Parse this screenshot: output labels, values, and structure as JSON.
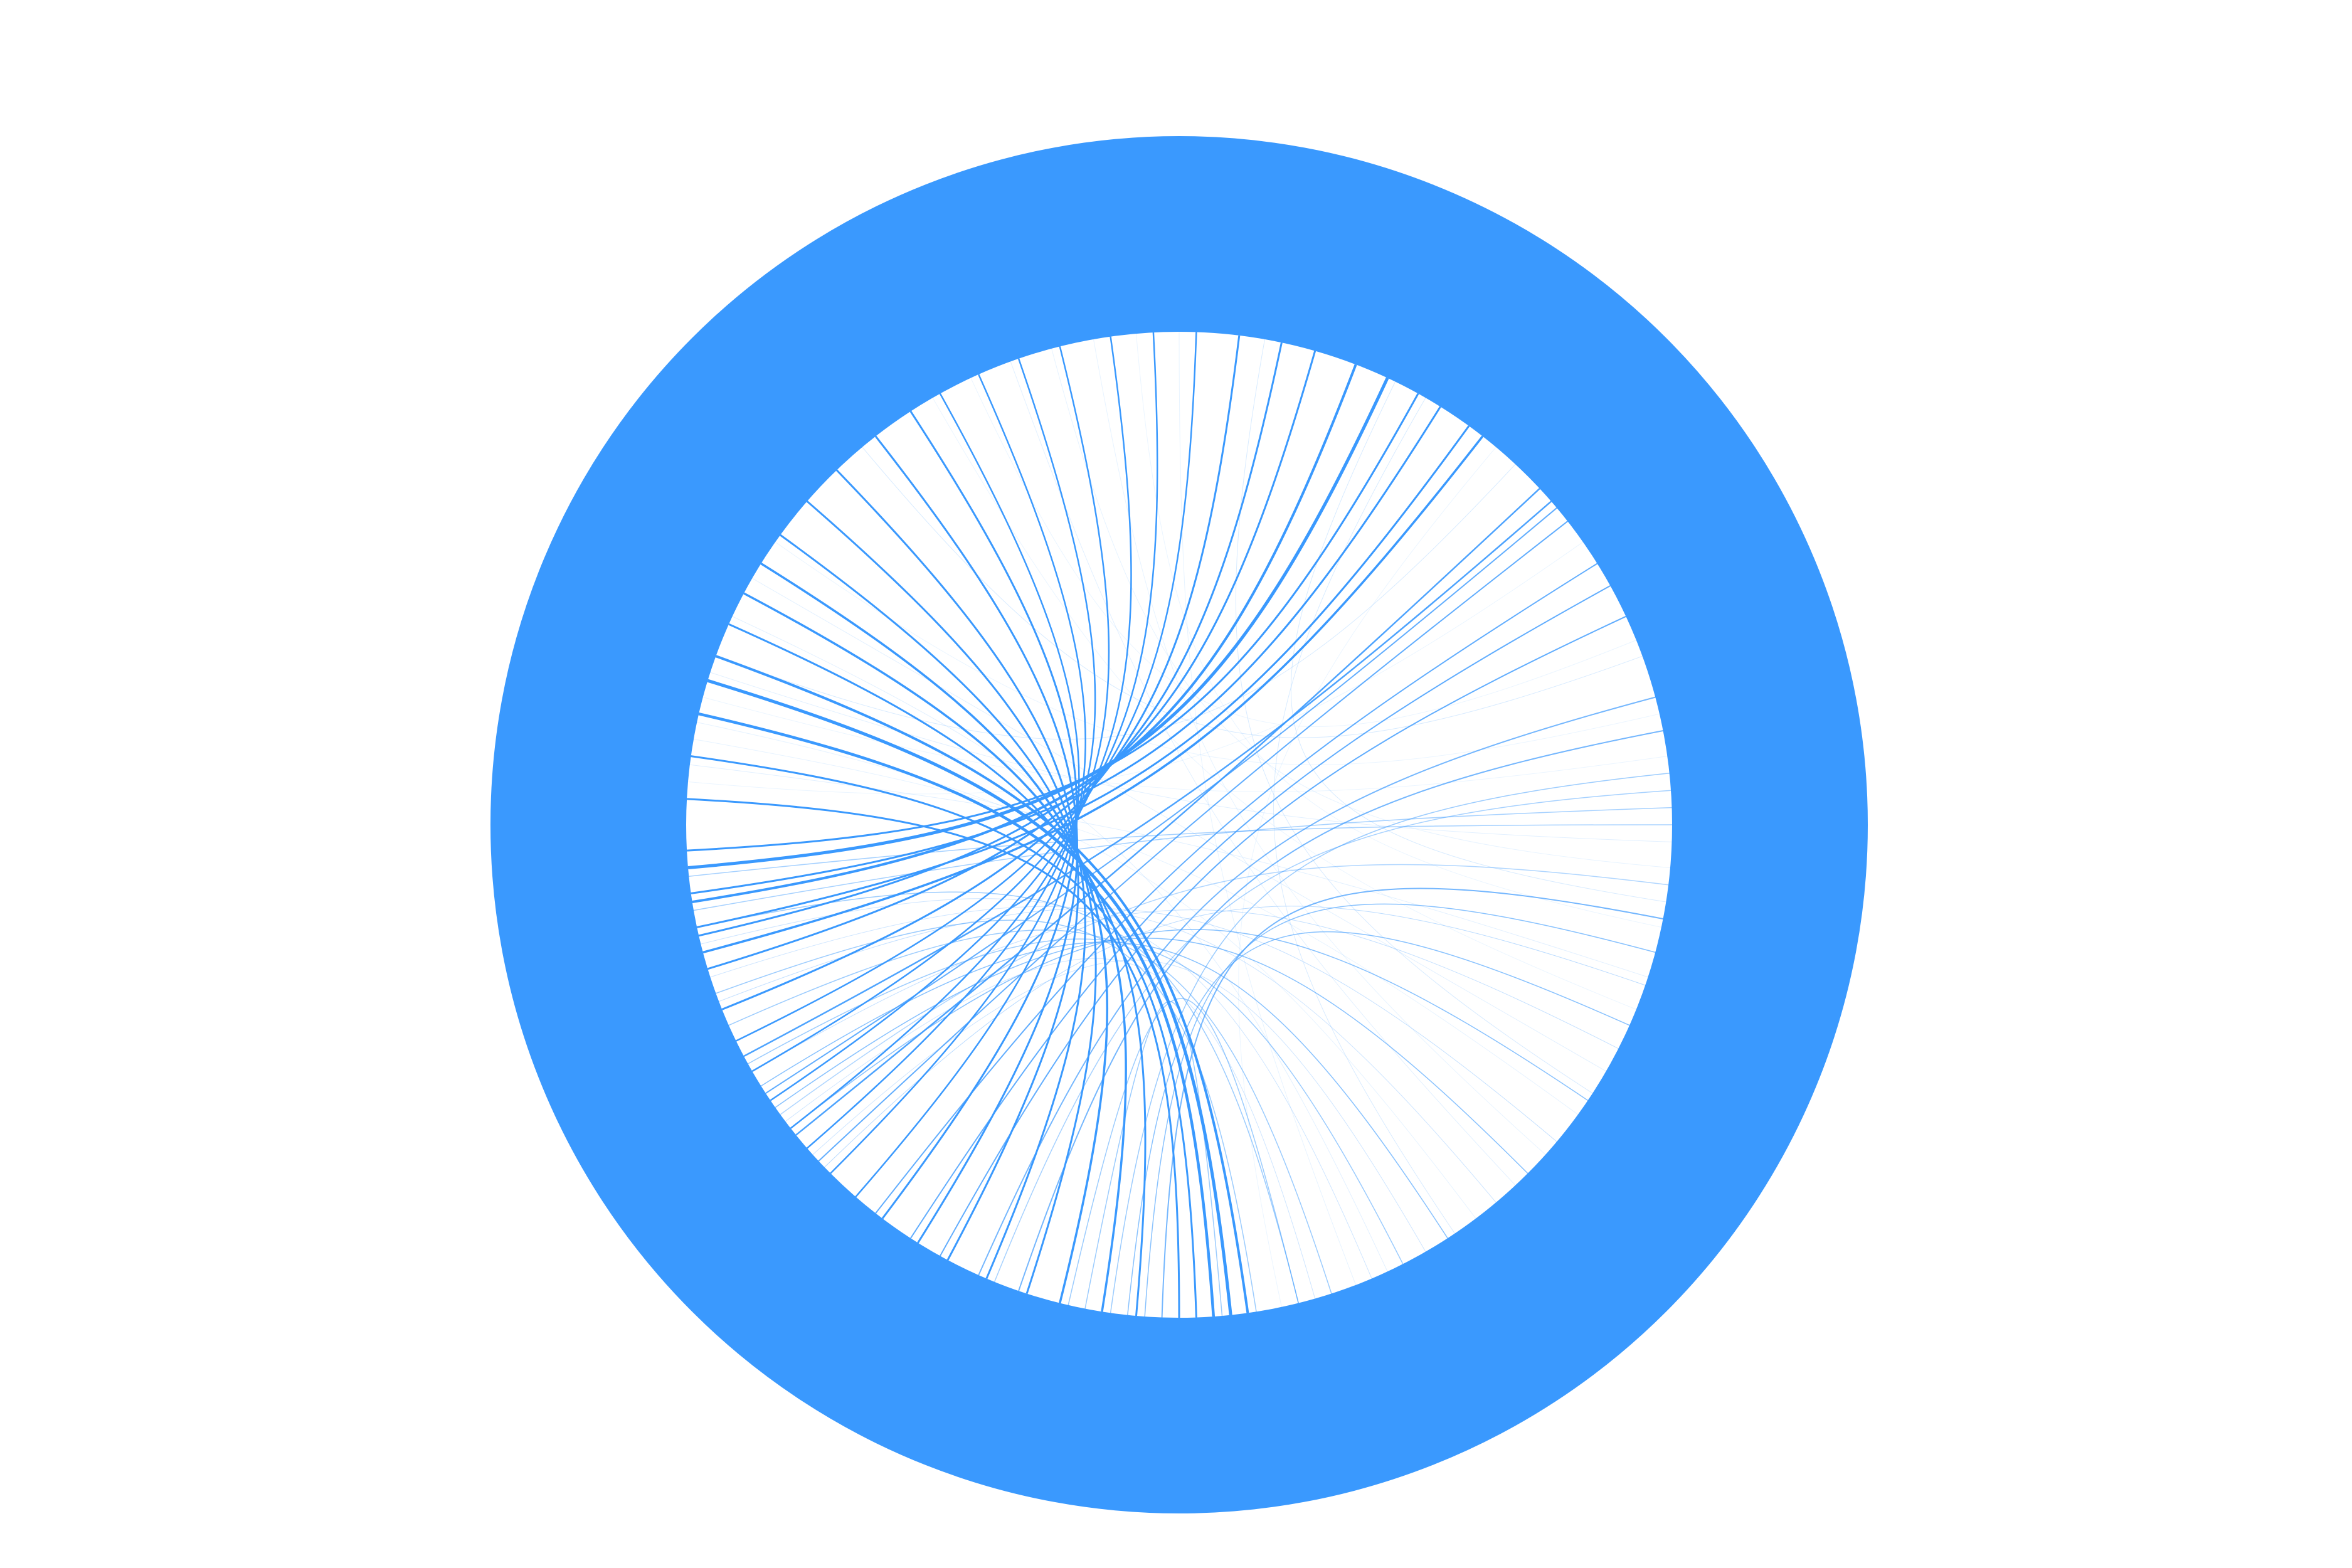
{
  "chart_data": {
    "type": "chord",
    "title": "",
    "ring_color": "#3a99fe",
    "link_color": "#3a99fe",
    "background": "#ffffff",
    "labels": [],
    "note": "",
    "links": [
      {
        "a": 183,
        "b": 90,
        "w": 3.0,
        "o": 1.0
      },
      {
        "a": 188,
        "b": 88,
        "w": 3.0,
        "o": 1.0
      },
      {
        "a": 193,
        "b": 86,
        "w": 4.5,
        "o": 1.0
      },
      {
        "a": 197,
        "b": 84,
        "w": 5.0,
        "o": 1.0
      },
      {
        "a": 200,
        "b": 82,
        "w": 4.0,
        "o": 1.0
      },
      {
        "a": 204,
        "b": 95,
        "w": 3.0,
        "o": 1.0
      },
      {
        "a": 208,
        "b": 99,
        "w": 3.5,
        "o": 1.0
      },
      {
        "a": 212,
        "b": 104,
        "w": 3.5,
        "o": 1.0
      },
      {
        "a": 216,
        "b": 108,
        "w": 3.0,
        "o": 1.0
      },
      {
        "a": 221,
        "b": 113,
        "w": 3.0,
        "o": 1.0
      },
      {
        "a": 226,
        "b": 118,
        "w": 3.0,
        "o": 1.0
      },
      {
        "a": 232,
        "b": 122,
        "w": 3.0,
        "o": 1.0
      },
      {
        "a": 237,
        "b": 127,
        "w": 3.0,
        "o": 1.0
      },
      {
        "a": 241,
        "b": 131,
        "w": 2.5,
        "o": 1.0
      },
      {
        "a": 246,
        "b": 135,
        "w": 2.5,
        "o": 1.0
      },
      {
        "a": 251,
        "b": 139,
        "w": 2.5,
        "o": 1.0
      },
      {
        "a": 256,
        "b": 142,
        "w": 2.5,
        "o": 1.0
      },
      {
        "a": 262,
        "b": 146,
        "w": 2.5,
        "o": 1.0
      },
      {
        "a": 267,
        "b": 150,
        "w": 2.5,
        "o": 1.0
      },
      {
        "a": 272,
        "b": 154,
        "w": 2.5,
        "o": 1.0
      },
      {
        "a": 277,
        "b": 158,
        "w": 3.0,
        "o": 1.0
      },
      {
        "a": 282,
        "b": 163,
        "w": 3.0,
        "o": 1.0
      },
      {
        "a": 286,
        "b": 167,
        "w": 3.0,
        "o": 1.0
      },
      {
        "a": 291,
        "b": 171,
        "w": 4.0,
        "o": 1.0
      },
      {
        "a": 295,
        "b": 175,
        "w": 5.0,
        "o": 1.0
      },
      {
        "a": 299,
        "b": 177,
        "w": 3.0,
        "o": 1.0
      },
      {
        "a": 302,
        "b": 172,
        "w": 3.0,
        "o": 1.0
      },
      {
        "a": 306,
        "b": 168,
        "w": 3.0,
        "o": 1.0
      },
      {
        "a": 308,
        "b": 165,
        "w": 3.5,
        "o": 1.0
      },
      {
        "a": 317,
        "b": 141,
        "w": 2.5,
        "o": 0.9
      },
      {
        "a": 319,
        "b": 152,
        "w": 2.5,
        "o": 0.9
      },
      {
        "a": 320,
        "b": 147,
        "w": 2.0,
        "o": 0.8
      },
      {
        "a": 322,
        "b": 137,
        "w": 2.0,
        "o": 0.8
      },
      {
        "a": 328,
        "b": 128,
        "w": 2.0,
        "o": 0.8
      },
      {
        "a": 331,
        "b": 123,
        "w": 2.0,
        "o": 0.8
      },
      {
        "a": 335,
        "b": 119,
        "w": 2.0,
        "o": 0.8
      },
      {
        "a": 345,
        "b": 114,
        "w": 2.0,
        "o": 0.7
      },
      {
        "a": 349,
        "b": 109,
        "w": 2.0,
        "o": 0.7
      },
      {
        "a": 11,
        "b": 92,
        "w": 2.0,
        "o": 0.7
      },
      {
        "a": 15,
        "b": 94,
        "w": 1.5,
        "o": 0.6
      },
      {
        "a": 24,
        "b": 96,
        "w": 1.5,
        "o": 0.6
      },
      {
        "a": 34,
        "b": 142,
        "w": 1.5,
        "o": 0.6
      },
      {
        "a": 45,
        "b": 145,
        "w": 1.5,
        "o": 0.6
      },
      {
        "a": 57,
        "b": 148,
        "w": 1.5,
        "o": 0.6
      },
      {
        "a": 63,
        "b": 151,
        "w": 1.5,
        "o": 0.5
      },
      {
        "a": 72,
        "b": 156,
        "w": 1.5,
        "o": 0.5
      },
      {
        "a": 76,
        "b": 103,
        "w": 1.5,
        "o": 0.5
      },
      {
        "a": 76,
        "b": 168,
        "w": 1.5,
        "o": 0.5
      },
      {
        "a": 81,
        "b": 160,
        "w": 1.5,
        "o": 0.5
      },
      {
        "a": 85,
        "b": 101,
        "w": 1.5,
        "o": 0.5
      },
      {
        "a": 354,
        "b": 98,
        "w": 1.5,
        "o": 0.5
      },
      {
        "a": 356,
        "b": 112,
        "w": 1.5,
        "o": 0.45
      },
      {
        "a": 358,
        "b": 170,
        "w": 1.5,
        "o": 0.45
      },
      {
        "a": 0,
        "b": 174,
        "w": 1.5,
        "o": 0.45
      },
      {
        "a": 7,
        "b": 144,
        "w": 1.5,
        "o": 0.4
      },
      {
        "a": 19,
        "b": 136,
        "w": 1.0,
        "o": 0.35
      },
      {
        "a": 27,
        "b": 150,
        "w": 1.0,
        "o": 0.3
      },
      {
        "a": 40,
        "b": 159,
        "w": 1.0,
        "o": 0.3
      },
      {
        "a": 50,
        "b": 162,
        "w": 1.0,
        "o": 0.25
      },
      {
        "a": 60,
        "b": 138,
        "w": 1.0,
        "o": 0.25
      },
      {
        "a": 67,
        "b": 166,
        "w": 1.0,
        "o": 0.25
      },
      {
        "a": 74,
        "b": 143,
        "w": 1.0,
        "o": 0.25
      },
      {
        "a": 9,
        "b": 296,
        "w": 1.0,
        "o": 0.2
      },
      {
        "a": 33,
        "b": 280,
        "w": 1.0,
        "o": 0.2
      },
      {
        "a": 56,
        "b": 300,
        "w": 1.0,
        "o": 0.2
      },
      {
        "a": 313,
        "b": 200,
        "w": 1.0,
        "o": 0.2
      },
      {
        "a": 340,
        "b": 230,
        "w": 1.0,
        "o": 0.2
      },
      {
        "a": 2,
        "b": 198,
        "w": 1.0,
        "o": 0.15
      },
      {
        "a": 18,
        "b": 187,
        "w": 1.0,
        "o": 0.15
      },
      {
        "a": 47,
        "b": 250,
        "w": 1.0,
        "o": 0.15
      },
      {
        "a": 30,
        "b": 210,
        "w": 1.0,
        "o": 0.15
      },
      {
        "a": 65,
        "b": 205,
        "w": 1.0,
        "o": 0.15
      },
      {
        "a": 36,
        "b": 190,
        "w": 1.0,
        "o": 0.12
      },
      {
        "a": 53,
        "b": 192,
        "w": 1.0,
        "o": 0.12
      },
      {
        "a": 5,
        "b": 255,
        "w": 1.0,
        "o": 0.12
      },
      {
        "a": 42,
        "b": 260,
        "w": 1.0,
        "o": 0.12
      },
      {
        "a": 69,
        "b": 270,
        "w": 1.0,
        "o": 0.12
      },
      {
        "a": 12,
        "b": 265,
        "w": 1.0,
        "o": 0.1
      },
      {
        "a": 22,
        "b": 240,
        "w": 1.0,
        "o": 0.1
      },
      {
        "a": 78,
        "b": 310,
        "w": 1.0,
        "o": 0.1
      },
      {
        "a": 352,
        "b": 195,
        "w": 1.0,
        "o": 0.1
      },
      {
        "a": 347,
        "b": 215,
        "w": 1.0,
        "o": 0.1
      },
      {
        "a": 338,
        "b": 245,
        "w": 1.0,
        "o": 0.1
      },
      {
        "a": 325,
        "b": 185,
        "w": 1.0,
        "o": 0.1
      }
    ]
  }
}
